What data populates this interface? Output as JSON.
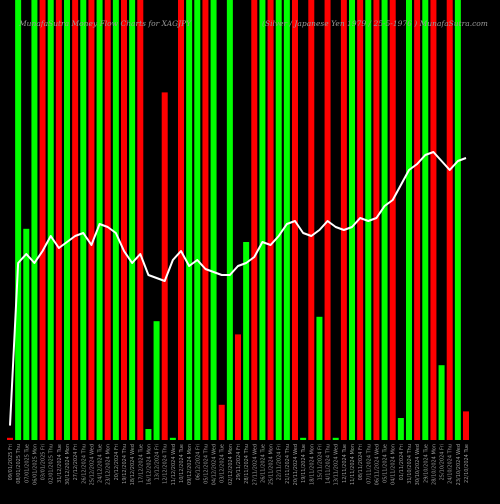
{
  "header": {
    "left": "MunafaSutra Money Flow Charts for XAGJPY",
    "right": "(Silver / Japanese Yen 1979 / 25-5-1976 ) MunafaSutra.com"
  },
  "colors": {
    "background": "#000000",
    "up": "#00ff00",
    "down": "#ff0000",
    "line": "#ffffff",
    "text": "#9a9a9a"
  },
  "chart_data": {
    "type": "bar",
    "title": "MunafaSutra Money Flow Charts for XAGJPY",
    "categories": [
      "09/01/2025 Fri",
      "08/01/2025 Thu",
      "07/01/2025 Tue",
      "06/01/2025 Mon",
      "03/01/2025 Fri",
      "02/01/2025 Thu",
      "31/12/2024 Tue",
      "30/12/2024 Mon",
      "27/12/2024 Fri",
      "26/12/2024 Thu",
      "25/12/2024 Wed",
      "24/12/2024 Tue",
      "23/12/2024 Mon",
      "20/12/2024 Fri",
      "19/12/2024 Thu",
      "18/12/2024 Wed",
      "17/12/2024 Tue",
      "16/12/2024 Mon",
      "13/12/2024 Fri",
      "12/12/2024 Thu",
      "11/12/2024 Wed",
      "10/12/2024 Tue",
      "09/12/2024 Mon",
      "06/12/2024 Fri",
      "05/12/2024 Thu",
      "04/12/2024 Wed",
      "03/12/2024 Tue",
      "02/12/2024 Mon",
      "29/11/2024 Fri",
      "28/11/2024 Thu",
      "27/11/2024 Wed",
      "26/11/2024 Tue",
      "25/11/2024 Mon",
      "22/11/2024 Fri",
      "21/11/2024 Thu",
      "20/11/2024 Wed",
      "19/11/2024 Tue",
      "18/11/2024 Mon",
      "15/11/2024 Fri",
      "14/11/2024 Thu",
      "13/11/2024 Wed",
      "12/11/2024 Tue",
      "11/11/2024 Mon",
      "08/11/2024 Fri",
      "07/11/2024 Thu",
      "06/11/2024 Wed",
      "05/11/2024 Tue",
      "04/11/2024 Mon",
      "01/11/2024 Fri",
      "31/10/2024 Thu",
      "30/10/2024 Wed",
      "29/10/2024 Tue",
      "28/10/2024 Mon",
      "25/10/2024 Fri",
      "24/10/2024 Thu",
      "23/10/2024 Wed",
      "22/10/2024 Tue"
    ],
    "series": [
      {
        "directions": [
          "down",
          "up",
          "up",
          "up",
          "down",
          "up",
          "down",
          "up",
          "down",
          "up",
          "down",
          "up",
          "down",
          "up",
          "down",
          "up",
          "down",
          "up",
          "up",
          "down",
          "up",
          "down",
          "up",
          "up",
          "down",
          "up",
          "down",
          "up",
          "down",
          "up",
          "down",
          "up",
          "down",
          "up",
          "up",
          "down",
          "up",
          "down",
          "up",
          "down",
          "up",
          "down",
          "up",
          "down",
          "up",
          "down",
          "up",
          "down",
          "up",
          "up",
          "down",
          "up",
          "down",
          "up",
          "down",
          "up",
          "down"
        ],
        "values": [
          0.5,
          100,
          48,
          100,
          100,
          100,
          100,
          100,
          100,
          100,
          100,
          100,
          100,
          100,
          100,
          100,
          100,
          2.5,
          27,
          79,
          0.5,
          100,
          100,
          100,
          100,
          100,
          8,
          100,
          24,
          45,
          100,
          100,
          100,
          100,
          100,
          100,
          0.5,
          100,
          28,
          100,
          0.5,
          100,
          100,
          100,
          100,
          100,
          100,
          100,
          5,
          100,
          100,
          100,
          100,
          17,
          100,
          100,
          6.5
        ]
      },
      {
        "values": [
          4.8,
          59,
          62,
          59,
          63,
          68,
          64,
          66,
          68,
          69,
          65,
          72,
          71,
          69,
          63,
          59,
          62,
          55,
          54,
          53,
          60,
          63,
          58,
          60,
          57,
          56,
          55,
          55,
          58,
          59,
          61,
          66,
          65,
          68,
          72,
          73,
          69,
          68,
          70,
          73,
          71,
          70,
          71,
          74,
          73,
          74,
          78,
          80,
          85,
          90,
          92,
          95,
          96,
          93,
          90,
          93,
          94
        ]
      }
    ],
    "ylim": [
      0,
      100
    ],
    "y2lim": [
      0,
      100
    ],
    "grid": false,
    "legend": "none"
  }
}
